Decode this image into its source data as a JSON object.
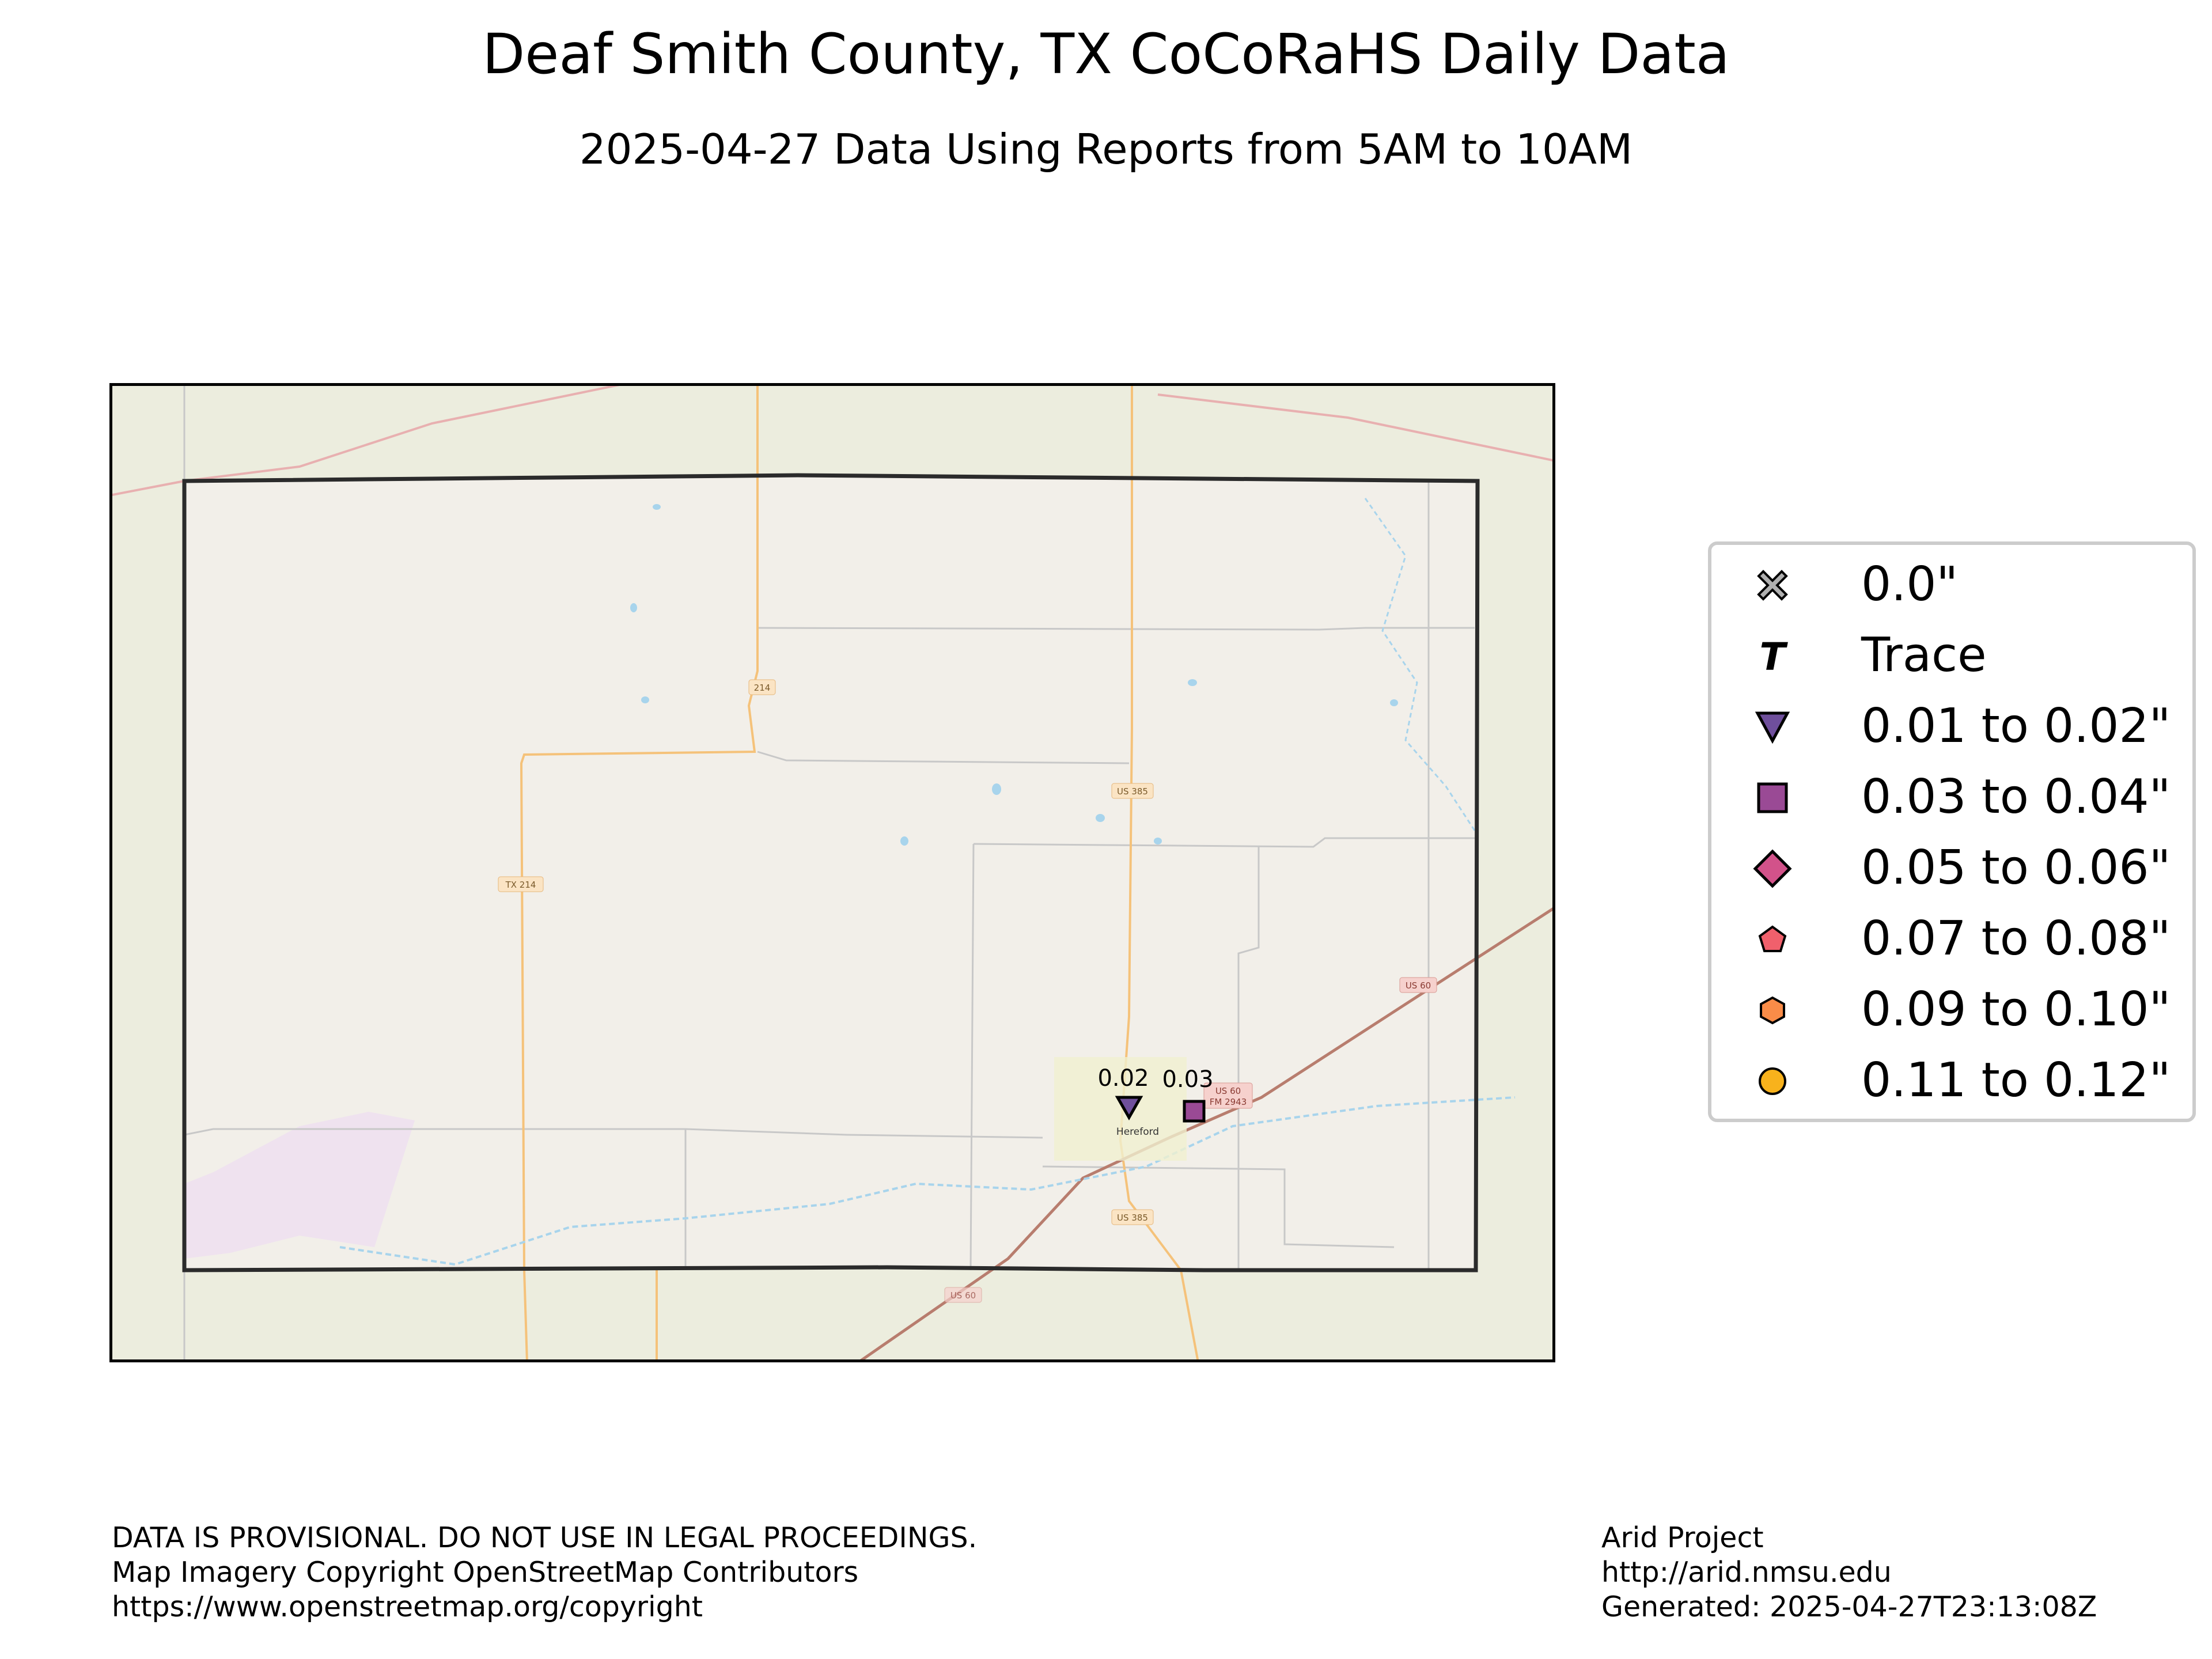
{
  "title": "Deaf Smith County, TX CoCoRaHS Daily Data",
  "subtitle": "2025-04-27 Data Using Reports from 5AM to 10AM",
  "colors": {
    "county_outline": "#2b2b2b",
    "map_background": "#f2efe9",
    "outside_county": "#ecedde",
    "primary_road": "#f5c27a",
    "trunk_road": "#b87d6e",
    "water": "#a8d4ec"
  },
  "map_labels": {
    "city": "Hereford",
    "road_us385_north": "US 385",
    "road_us385_south": "US 385",
    "road_tx214_mid": "TX 214",
    "road_tx214_north": "214",
    "road_us60_east": "US 60",
    "road_us60_town": "US 60",
    "road_fm2943": "FM 2943",
    "road_us60_south": "US 60"
  },
  "stations": [
    {
      "name": "station-hereford-west",
      "value_label": "0.02",
      "category": "0.01 to 0.02\"",
      "symbol": "triangle-down-icon",
      "color": "#6f4f9c"
    },
    {
      "name": "station-hereford-east",
      "value_label": "0.03",
      "category": "0.03 to 0.04\"",
      "symbol": "square-icon",
      "color": "#9a4a95"
    }
  ],
  "legend": [
    {
      "label": "0.0\"",
      "symbol": "x-cross-icon",
      "color": "#b0b0b0"
    },
    {
      "label": "Trace",
      "symbol": "t-letter-icon",
      "color": "#000000"
    },
    {
      "label": "0.01 to 0.02\"",
      "symbol": "triangle-down-icon",
      "color": "#6f4f9c"
    },
    {
      "label": "0.03 to 0.04\"",
      "symbol": "square-icon",
      "color": "#9a4a95"
    },
    {
      "label": "0.05 to 0.06\"",
      "symbol": "diamond-icon",
      "color": "#d2528a"
    },
    {
      "label": "0.07 to 0.08\"",
      "symbol": "pentagon-icon",
      "color": "#f0606c"
    },
    {
      "label": "0.09 to 0.10\"",
      "symbol": "hexagon-icon",
      "color": "#f98c48"
    },
    {
      "label": "0.11 to 0.12\"",
      "symbol": "circle-icon",
      "color": "#f8b21c"
    }
  ],
  "footer_left": [
    "DATA IS PROVISIONAL. DO NOT USE IN LEGAL PROCEEDINGS.",
    "Map Imagery Copyright OpenStreetMap Contributors",
    "https://www.openstreetmap.org/copyright"
  ],
  "footer_right": [
    "Arid Project",
    "http://arid.nmsu.edu",
    "Generated: 2025-04-27T23:13:08Z"
  ]
}
